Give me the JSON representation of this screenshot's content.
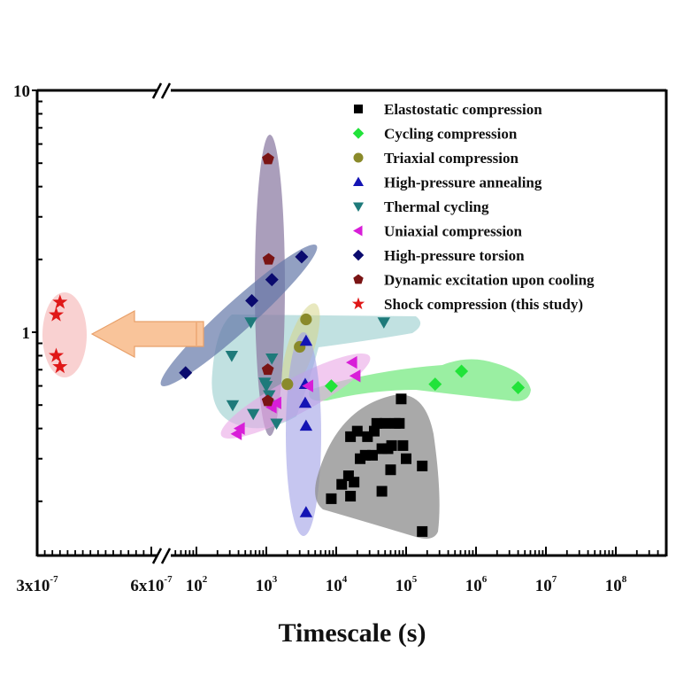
{
  "chart_data": {
    "type": "scatter",
    "title": "",
    "xlabel": "Timescale (s)",
    "ylabel": "",
    "xscale": "log-broken",
    "yscale": "log",
    "ylim": [
      0.12,
      10
    ],
    "xlim_left_segment": [
      3e-07,
      6.5e-07
    ],
    "xlim_right_segment": [
      60,
      500000000
    ],
    "x_tick_labels": [
      {
        "value": 3e-07,
        "base": "3x10",
        "exp": "-7"
      },
      {
        "value": 6e-07,
        "base": "6x10",
        "exp": "-7"
      },
      {
        "value": 100,
        "base": "10",
        "exp": "2"
      },
      {
        "value": 1000,
        "base": "10",
        "exp": "3"
      },
      {
        "value": 10000,
        "base": "10",
        "exp": "4"
      },
      {
        "value": 100000,
        "base": "10",
        "exp": "5"
      },
      {
        "value": 1000000,
        "base": "10",
        "exp": "6"
      },
      {
        "value": 10000000,
        "base": "10",
        "exp": "7"
      },
      {
        "value": 100000000,
        "base": "10",
        "exp": "8"
      }
    ],
    "y_tick_labels": [
      {
        "value": 10,
        "label": "10"
      },
      {
        "value": 1,
        "label": "1"
      }
    ],
    "legend_position": "top-right",
    "series": [
      {
        "name": "Elastostatic compression",
        "marker": "square",
        "color": "#000000",
        "region_color": "#8c8c8c",
        "points": [
          [
            8500,
            0.205
          ],
          [
            12000,
            0.235
          ],
          [
            15000,
            0.255
          ],
          [
            16000,
            0.21
          ],
          [
            18000,
            0.24
          ],
          [
            16000,
            0.37
          ],
          [
            20000,
            0.39
          ],
          [
            22000,
            0.3
          ],
          [
            26000,
            0.31
          ],
          [
            33000,
            0.31
          ],
          [
            28000,
            0.37
          ],
          [
            35000,
            0.39
          ],
          [
            38000,
            0.42
          ],
          [
            45000,
            0.33
          ],
          [
            50000,
            0.42
          ],
          [
            55000,
            0.33
          ],
          [
            62000,
            0.34
          ],
          [
            70000,
            0.42
          ],
          [
            80000,
            0.42
          ],
          [
            85000,
            0.53
          ],
          [
            90000,
            0.34
          ],
          [
            100000,
            0.3
          ],
          [
            45000,
            0.22
          ],
          [
            60000,
            0.27
          ],
          [
            170000,
            0.28
          ],
          [
            170000,
            0.15
          ]
        ]
      },
      {
        "name": "Cycling compression",
        "marker": "diamond",
        "color": "#22e33a",
        "region_color": "#6fe87a",
        "points": [
          [
            8500,
            0.6
          ],
          [
            260000,
            0.61
          ],
          [
            620000,
            0.69
          ],
          [
            4000000,
            0.59
          ]
        ]
      },
      {
        "name": "Triaxial compression",
        "marker": "circle",
        "color": "#8a8a2a",
        "region_color": "#d6d68a",
        "points": [
          [
            3700,
            1.13
          ],
          [
            3000,
            0.87
          ],
          [
            2000,
            0.61
          ]
        ]
      },
      {
        "name": "High-pressure annealing",
        "marker": "triangle-up",
        "color": "#1414b4",
        "region_color": "#a0a0e6",
        "points": [
          [
            3700,
            0.92
          ],
          [
            3600,
            0.61
          ],
          [
            3600,
            0.51
          ],
          [
            3700,
            0.41
          ],
          [
            3700,
            0.18
          ]
        ]
      },
      {
        "name": "Thermal cycling",
        "marker": "triangle-down",
        "color": "#1e7a7a",
        "region_color": "#8ec9c9",
        "points": [
          [
            600,
            1.1
          ],
          [
            320,
            0.8
          ],
          [
            1200,
            0.78
          ],
          [
            950,
            0.62
          ],
          [
            1200,
            0.5
          ],
          [
            330,
            0.5
          ],
          [
            650,
            0.46
          ],
          [
            1000,
            0.6
          ],
          [
            1400,
            0.42
          ],
          [
            1100,
            0.55
          ],
          [
            48000,
            1.1
          ]
        ]
      },
      {
        "name": "Uniaxial compression",
        "marker": "triangle-left",
        "color": "#d81ed8",
        "region_color": "#e9a6e6",
        "points": [
          [
            17000,
            0.75
          ],
          [
            19000,
            0.66
          ],
          [
            4000,
            0.6
          ],
          [
            1400,
            0.51
          ],
          [
            1200,
            0.49
          ],
          [
            420,
            0.4
          ],
          [
            380,
            0.38
          ]
        ]
      },
      {
        "name": "High-pressure torsion",
        "marker": "diamond",
        "color": "#0a0a6e",
        "region_color": "#6478a8",
        "points": [
          [
            3200,
            2.05
          ],
          [
            1200,
            1.65
          ],
          [
            620,
            1.35
          ],
          [
            70,
            0.68
          ]
        ]
      },
      {
        "name": "Dynamic excitation upon cooling",
        "marker": "pentagon",
        "color": "#7a1414",
        "region_color": "#8e7ea4",
        "points": [
          [
            1060,
            5.2
          ],
          [
            1080,
            2.0
          ],
          [
            1050,
            0.7
          ],
          [
            1050,
            0.52
          ]
        ]
      },
      {
        "name": "Shock compression (this study)",
        "marker": "star",
        "color": "#e01818",
        "region_color": "#f6b8b8",
        "points": [
          [
            3.6e-07,
            1.33
          ],
          [
            3.5e-07,
            1.18
          ],
          [
            3.5e-07,
            0.8
          ],
          [
            3.6e-07,
            0.72
          ]
        ]
      }
    ],
    "annotation": {
      "type": "arrow",
      "direction": "left",
      "color": "#f9c49a",
      "meaning": "points to shock compression cluster"
    }
  }
}
